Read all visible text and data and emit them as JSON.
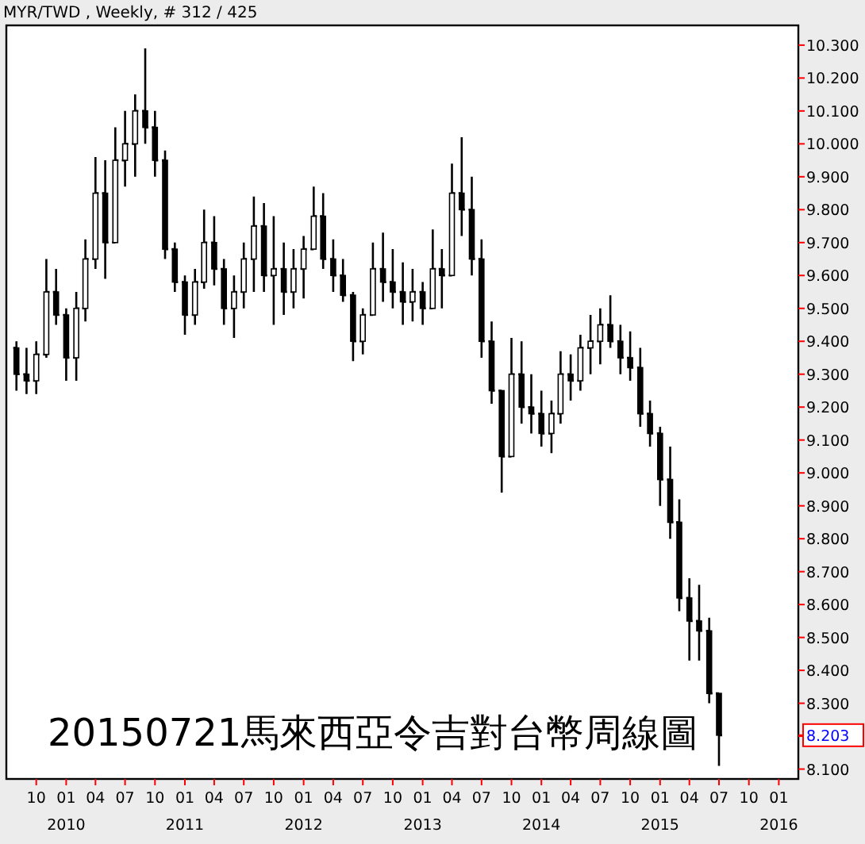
{
  "chart_data": {
    "type": "candlestick",
    "title": "MYR/TWD , Weekly, # 312 / 425",
    "annotations": [
      "20150721馬來西亞令吉對台幣周線圖",
      "8.203"
    ],
    "x": [
      "2009-08",
      "2009-09",
      "2009-10",
      "2009-11",
      "2009-12",
      "2010-01",
      "2010-02",
      "2010-03",
      "2010-04",
      "2010-05",
      "2010-06",
      "2010-07",
      "2010-08",
      "2010-09",
      "2010-10",
      "2010-11",
      "2010-12",
      "2011-01",
      "2011-02",
      "2011-03",
      "2011-04",
      "2011-05",
      "2011-06",
      "2011-07",
      "2011-08",
      "2011-09",
      "2011-10",
      "2011-11",
      "2011-12",
      "2012-01",
      "2012-02",
      "2012-03",
      "2012-04",
      "2012-05",
      "2012-06",
      "2012-07",
      "2012-08",
      "2012-09",
      "2012-10",
      "2012-11",
      "2012-12",
      "2013-01",
      "2013-02",
      "2013-03",
      "2013-04",
      "2013-05",
      "2013-06",
      "2013-07",
      "2013-08",
      "2013-09",
      "2013-10",
      "2013-11",
      "2013-12",
      "2014-01",
      "2014-02",
      "2014-03",
      "2014-04",
      "2014-05",
      "2014-06",
      "2014-07",
      "2014-08",
      "2014-09",
      "2014-10",
      "2014-11",
      "2014-12",
      "2015-01",
      "2015-02",
      "2015-03",
      "2015-04",
      "2015-05",
      "2015-06",
      "2015-07"
    ],
    "ohlc": [
      [
        9.38,
        9.4,
        9.25,
        9.3
      ],
      [
        9.3,
        9.38,
        9.24,
        9.28
      ],
      [
        9.28,
        9.4,
        9.24,
        9.36
      ],
      [
        9.36,
        9.65,
        9.35,
        9.55
      ],
      [
        9.55,
        9.62,
        9.45,
        9.48
      ],
      [
        9.48,
        9.5,
        9.28,
        9.35
      ],
      [
        9.35,
        9.55,
        9.28,
        9.5
      ],
      [
        9.5,
        9.71,
        9.46,
        9.65
      ],
      [
        9.65,
        9.96,
        9.62,
        9.85
      ],
      [
        9.85,
        9.95,
        9.59,
        9.7
      ],
      [
        9.7,
        10.05,
        9.7,
        9.95
      ],
      [
        9.95,
        10.1,
        9.87,
        10.0
      ],
      [
        10.0,
        10.15,
        9.9,
        10.1
      ],
      [
        10.1,
        10.29,
        10.0,
        10.05
      ],
      [
        10.05,
        10.1,
        9.9,
        9.95
      ],
      [
        9.95,
        9.98,
        9.65,
        9.68
      ],
      [
        9.68,
        9.7,
        9.55,
        9.58
      ],
      [
        9.58,
        9.6,
        9.42,
        9.48
      ],
      [
        9.48,
        9.62,
        9.45,
        9.58
      ],
      [
        9.58,
        9.8,
        9.56,
        9.7
      ],
      [
        9.7,
        9.78,
        9.57,
        9.62
      ],
      [
        9.62,
        9.65,
        9.45,
        9.5
      ],
      [
        9.5,
        9.6,
        9.41,
        9.55
      ],
      [
        9.55,
        9.7,
        9.5,
        9.65
      ],
      [
        9.65,
        9.84,
        9.55,
        9.75
      ],
      [
        9.75,
        9.82,
        9.55,
        9.6
      ],
      [
        9.6,
        9.78,
        9.45,
        9.62
      ],
      [
        9.62,
        9.7,
        9.48,
        9.55
      ],
      [
        9.55,
        9.68,
        9.5,
        9.62
      ],
      [
        9.62,
        9.72,
        9.53,
        9.68
      ],
      [
        9.68,
        9.87,
        9.68,
        9.78
      ],
      [
        9.78,
        9.85,
        9.62,
        9.65
      ],
      [
        9.65,
        9.71,
        9.55,
        9.6
      ],
      [
        9.6,
        9.65,
        9.52,
        9.54
      ],
      [
        9.54,
        9.55,
        9.34,
        9.4
      ],
      [
        9.4,
        9.5,
        9.36,
        9.48
      ],
      [
        9.48,
        9.7,
        9.48,
        9.62
      ],
      [
        9.62,
        9.73,
        9.52,
        9.58
      ],
      [
        9.58,
        9.68,
        9.5,
        9.55
      ],
      [
        9.55,
        9.64,
        9.45,
        9.52
      ],
      [
        9.52,
        9.62,
        9.46,
        9.55
      ],
      [
        9.55,
        9.58,
        9.45,
        9.5
      ],
      [
        9.5,
        9.74,
        9.5,
        9.62
      ],
      [
        9.62,
        9.68,
        9.5,
        9.6
      ],
      [
        9.6,
        9.94,
        9.6,
        9.85
      ],
      [
        9.85,
        10.02,
        9.72,
        9.8
      ],
      [
        9.8,
        9.9,
        9.6,
        9.65
      ],
      [
        9.65,
        9.71,
        9.35,
        9.4
      ],
      [
        9.4,
        9.46,
        9.21,
        9.25
      ],
      [
        9.25,
        9.25,
        8.94,
        9.05
      ],
      [
        9.05,
        9.41,
        9.05,
        9.3
      ],
      [
        9.3,
        9.4,
        9.15,
        9.2
      ],
      [
        9.2,
        9.3,
        9.12,
        9.18
      ],
      [
        9.18,
        9.25,
        9.08,
        9.12
      ],
      [
        9.12,
        9.22,
        9.06,
        9.18
      ],
      [
        9.18,
        9.37,
        9.15,
        9.3
      ],
      [
        9.3,
        9.36,
        9.22,
        9.28
      ],
      [
        9.28,
        9.42,
        9.25,
        9.38
      ],
      [
        9.38,
        9.48,
        9.3,
        9.4
      ],
      [
        9.4,
        9.5,
        9.33,
        9.45
      ],
      [
        9.45,
        9.54,
        9.38,
        9.4
      ],
      [
        9.4,
        9.45,
        9.3,
        9.35
      ],
      [
        9.35,
        9.43,
        9.28,
        9.32
      ],
      [
        9.32,
        9.38,
        9.14,
        9.18
      ],
      [
        9.18,
        9.22,
        9.08,
        9.12
      ],
      [
        9.12,
        9.14,
        8.9,
        8.98
      ],
      [
        8.98,
        9.08,
        8.8,
        8.85
      ],
      [
        8.85,
        8.92,
        8.58,
        8.62
      ],
      [
        8.62,
        8.68,
        8.43,
        8.55
      ],
      [
        8.55,
        8.66,
        8.43,
        8.52
      ],
      [
        8.52,
        8.56,
        8.3,
        8.33
      ],
      [
        8.33,
        8.33,
        8.11,
        8.203
      ]
    ],
    "color": "#000000",
    "xlim": [
      "2009-07-01",
      "2016-03-01"
    ],
    "xticks": [
      {
        "value": "2009-10-01",
        "label": "10"
      },
      {
        "value": "2010-01-01",
        "label": "01\n2010"
      },
      {
        "value": "2010-04-01",
        "label": "04"
      },
      {
        "value": "2010-07-01",
        "label": "07"
      },
      {
        "value": "2010-10-01",
        "label": "10"
      },
      {
        "value": "2011-01-01",
        "label": "01\n2011"
      },
      {
        "value": "2011-04-01",
        "label": "04"
      },
      {
        "value": "2011-07-01",
        "label": "07"
      },
      {
        "value": "2011-10-01",
        "label": "10"
      },
      {
        "value": "2012-01-01",
        "label": "01\n2012"
      },
      {
        "value": "2012-04-01",
        "label": "04"
      },
      {
        "value": "2012-07-01",
        "label": "07"
      },
      {
        "value": "2012-10-01",
        "label": "10"
      },
      {
        "value": "2013-01-01",
        "label": "01\n2013"
      },
      {
        "value": "2013-04-01",
        "label": "04"
      },
      {
        "value": "2013-07-01",
        "label": "07"
      },
      {
        "value": "2013-10-01",
        "label": "10"
      },
      {
        "value": "2014-01-01",
        "label": "01\n2014"
      },
      {
        "value": "2014-04-01",
        "label": "04"
      },
      {
        "value": "2014-07-01",
        "label": "07"
      },
      {
        "value": "2014-10-01",
        "label": "10"
      },
      {
        "value": "2015-01-01",
        "label": "01\n2015"
      },
      {
        "value": "2015-04-01",
        "label": "04"
      },
      {
        "value": "2015-07-01",
        "label": "07"
      },
      {
        "value": "2015-10-01",
        "label": "10"
      },
      {
        "value": "2016-01-01",
        "label": "01\n2016"
      }
    ],
    "ylim": [
      8.07,
      10.36
    ],
    "yticks": [
      {
        "value": 8.1,
        "label": "8.100"
      },
      {
        "value": 8.2,
        "label": null
      },
      {
        "value": 8.3,
        "label": "8.300"
      },
      {
        "value": 8.4,
        "label": "8.400"
      },
      {
        "value": 8.5,
        "label": "8.500"
      },
      {
        "value": 8.6,
        "label": "8.600"
      },
      {
        "value": 8.7,
        "label": "8.700"
      },
      {
        "value": 8.8,
        "label": "8.800"
      },
      {
        "value": 8.9,
        "label": "8.900"
      },
      {
        "value": 9.0,
        "label": "9.000"
      },
      {
        "value": 9.1,
        "label": "9.100"
      },
      {
        "value": 9.2,
        "label": "9.200"
      },
      {
        "value": 9.3,
        "label": "9.300"
      },
      {
        "value": 9.4,
        "label": "9.400"
      },
      {
        "value": 9.5,
        "label": "9.500"
      },
      {
        "value": 9.6,
        "label": "9.600"
      },
      {
        "value": 9.7,
        "label": "9.700"
      },
      {
        "value": 9.8,
        "label": "9.800"
      },
      {
        "value": 9.9,
        "label": "9.900"
      },
      {
        "value": 10.0,
        "label": "10.000"
      },
      {
        "value": 10.1,
        "label": "10.100"
      },
      {
        "value": 10.2,
        "label": "10.200"
      },
      {
        "value": 10.3,
        "label": "10.300"
      }
    ],
    "grid": false
  }
}
